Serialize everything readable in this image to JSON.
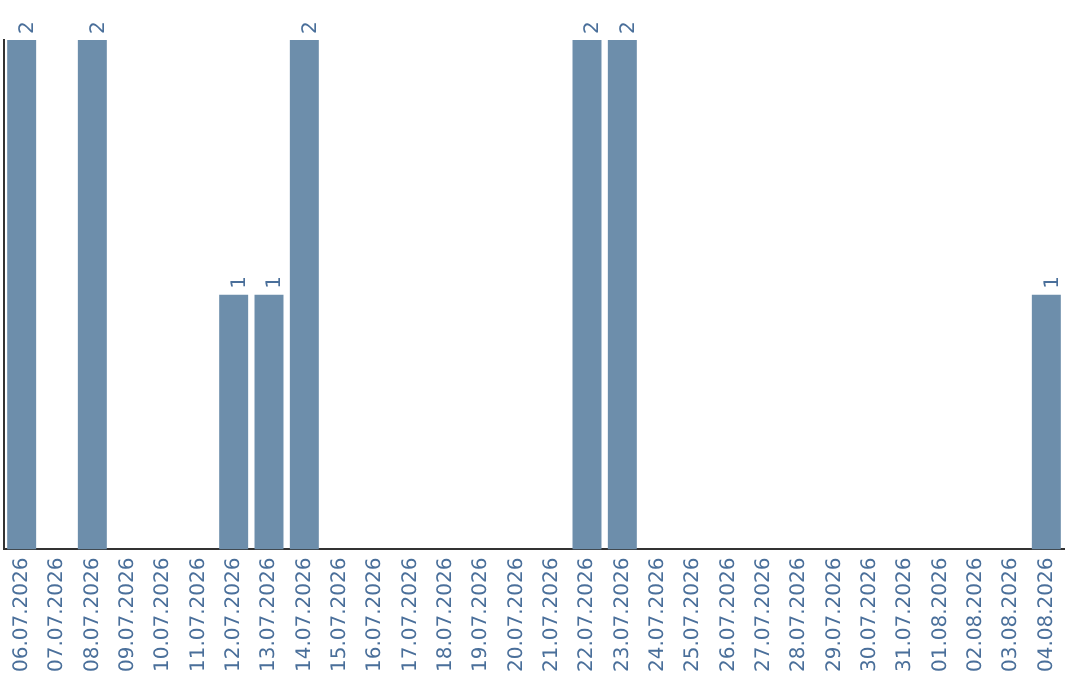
{
  "chart_data": {
    "type": "bar",
    "categories": [
      "06.07.2026",
      "07.07.2026",
      "08.07.2026",
      "09.07.2026",
      "10.07.2026",
      "11.07.2026",
      "12.07.2026",
      "13.07.2026",
      "14.07.2026",
      "15.07.2026",
      "16.07.2026",
      "17.07.2026",
      "18.07.2026",
      "19.07.2026",
      "20.07.2026",
      "21.07.2026",
      "22.07.2026",
      "23.07.2026",
      "24.07.2026",
      "25.07.2026",
      "26.07.2026",
      "27.07.2026",
      "28.07.2026",
      "29.07.2026",
      "30.07.2026",
      "31.07.2026",
      "01.08.2026",
      "02.08.2026",
      "03.08.2026",
      "04.08.2026"
    ],
    "values": [
      2,
      0,
      2,
      0,
      0,
      0,
      1,
      1,
      2,
      0,
      0,
      0,
      0,
      0,
      0,
      0,
      2,
      2,
      0,
      0,
      0,
      0,
      0,
      0,
      0,
      0,
      0,
      0,
      0,
      1
    ],
    "value_labels": [
      "2",
      null,
      "2",
      null,
      null,
      null,
      "1",
      "1",
      "2",
      null,
      null,
      null,
      null,
      null,
      null,
      null,
      "2",
      "2",
      null,
      null,
      null,
      null,
      null,
      null,
      null,
      null,
      null,
      null,
      null,
      "1"
    ],
    "color": "#6d8eab",
    "ylim": [
      0,
      2
    ],
    "tick_labels": "x",
    "grid": false,
    "legend": false
  }
}
